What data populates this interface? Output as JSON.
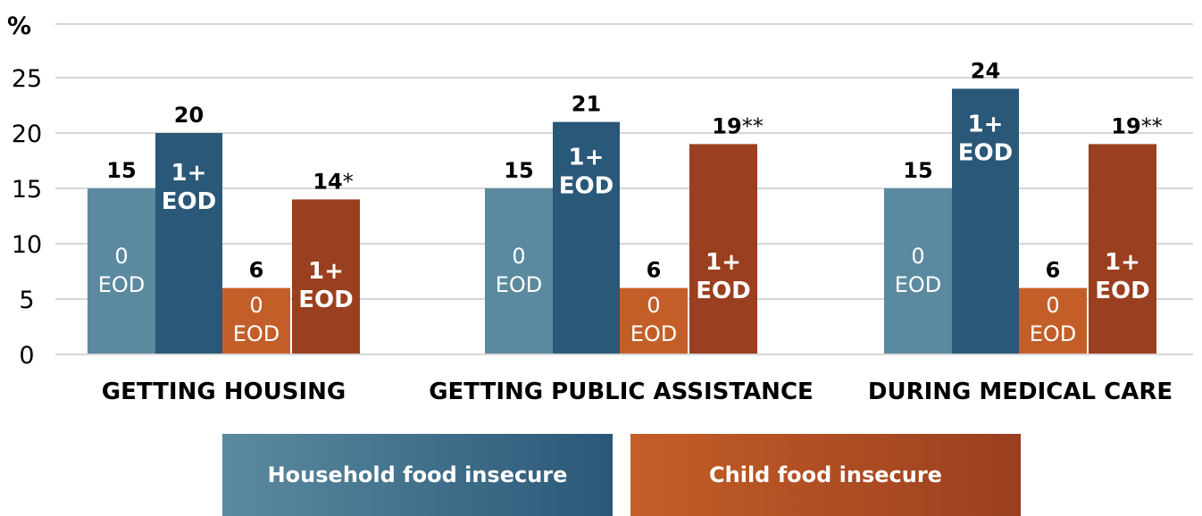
{
  "chart_data": {
    "type": "bar",
    "ylabel": "%",
    "ylim": [
      0,
      30
    ],
    "yticks": [
      0,
      5,
      10,
      15,
      20,
      25
    ],
    "grid": true,
    "categories": [
      "GETTING HOUSING",
      "GETTING PUBLIC ASSISTANCE",
      "DURING MEDICAL CARE"
    ],
    "bar_labels": {
      "zero": [
        "0",
        "EOD"
      ],
      "one_plus": [
        "1+",
        "EOD"
      ]
    },
    "series": [
      {
        "group": "Household food insecure",
        "sublabel": "0 EOD",
        "color": "#5b8aa0",
        "values": [
          15,
          15,
          15
        ],
        "value_labels": [
          "15",
          "15",
          "15"
        ],
        "significance": [
          "",
          "",
          ""
        ]
      },
      {
        "group": "Household food insecure",
        "sublabel": "1+ EOD",
        "color": "#2a5878",
        "values": [
          20,
          21,
          24
        ],
        "value_labels": [
          "20",
          "21",
          "24"
        ],
        "significance": [
          "",
          "",
          ""
        ]
      },
      {
        "group": "Child food insecure",
        "sublabel": "0 EOD",
        "color": "#c45e28",
        "values": [
          6,
          6,
          6
        ],
        "value_labels": [
          "6",
          "6",
          "6"
        ],
        "significance": [
          "",
          "",
          ""
        ]
      },
      {
        "group": "Child food insecure",
        "sublabel": "1+ EOD",
        "color": "#9a3f1f",
        "values": [
          14,
          19,
          19
        ],
        "value_labels": [
          "14",
          "19",
          "19"
        ],
        "significance": [
          "*",
          "**",
          "**"
        ]
      }
    ]
  },
  "legend": {
    "household": "Household food insecure",
    "child": "Child food insecure"
  }
}
